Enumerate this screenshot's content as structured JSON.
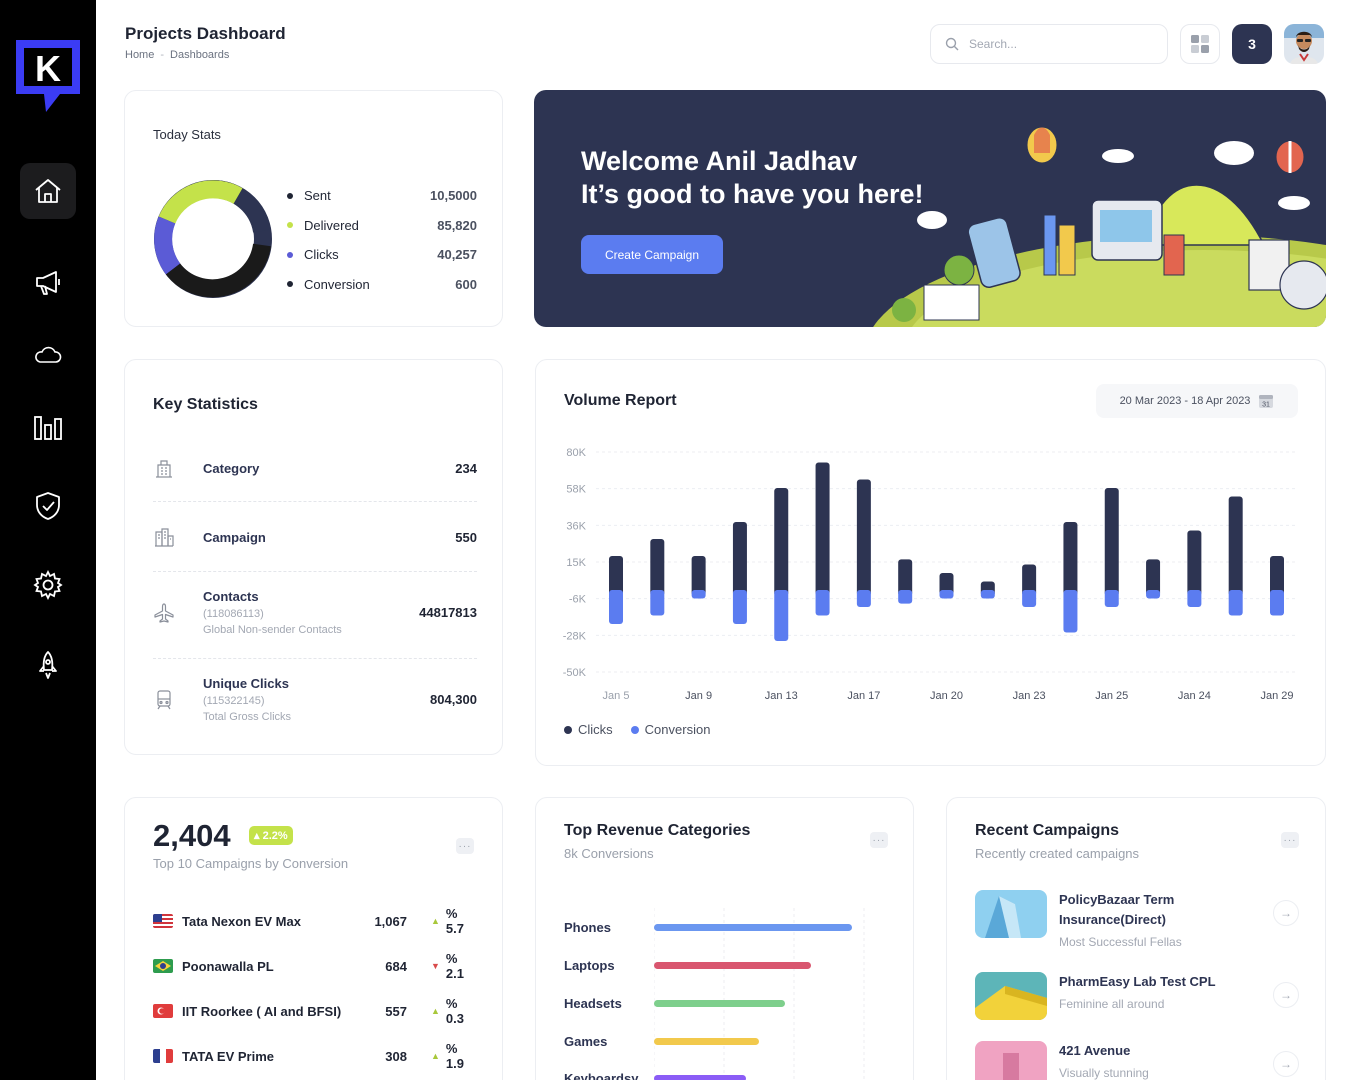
{
  "app": {
    "logo_letter": "K",
    "accent": "#3b3cf4"
  },
  "sidebar": {
    "items": [
      {
        "name": "home",
        "icon": "home-icon"
      },
      {
        "name": "campaigns",
        "icon": "megaphone-icon"
      },
      {
        "name": "cloud",
        "icon": "cloud-icon"
      },
      {
        "name": "reports",
        "icon": "bar-chart-icon"
      },
      {
        "name": "security",
        "icon": "shield-check-icon"
      },
      {
        "name": "settings",
        "icon": "gear-icon"
      },
      {
        "name": "launch",
        "icon": "rocket-icon"
      }
    ]
  },
  "header": {
    "title": "Projects Dashboard",
    "breadcrumb": [
      "Home",
      "Dashboards"
    ],
    "search_placeholder": "Search...",
    "notification_count": "3"
  },
  "today_stats": {
    "title": "Today Stats",
    "items": [
      {
        "label": "Sent",
        "value": "10,5000",
        "color": "#1f2433"
      },
      {
        "label": "Delivered",
        "value": "85,820",
        "color": "#c4e24a"
      },
      {
        "label": "Clicks",
        "value": "40,257",
        "color": "#5b5bd6"
      },
      {
        "label": "Conversion",
        "value": "600",
        "color": "#1f2433"
      }
    ]
  },
  "welcome": {
    "line1": "Welcome Anil Jadhav",
    "line2": "It’s good to have you here!",
    "button": "Create Campaign"
  },
  "key_statistics": {
    "title": "Key Statistics",
    "rows": [
      {
        "name": "Category",
        "value": "234",
        "icon": "building-icon"
      },
      {
        "name": "Campaign",
        "value": "550",
        "icon": "buildings-icon"
      },
      {
        "name": "Contacts",
        "id": "(118086113)",
        "sub": "Global Non-sender Contacts",
        "value": "44817813",
        "icon": "airplane-icon"
      },
      {
        "name": "Unique Clicks",
        "id": "(115322145)",
        "sub": "Total Gross Clicks",
        "value": "804,300",
        "icon": "train-icon"
      }
    ]
  },
  "volume_report": {
    "title": "Volume Report",
    "date_range": "20 Mar 2023 - 18 Apr 2023",
    "legend": [
      "Clicks",
      "Conversion"
    ]
  },
  "chart_data": {
    "type": "bar",
    "y_tick_labels": [
      "80K",
      "58K",
      "36K",
      "15K",
      "-6K",
      "-28K",
      "-50K"
    ],
    "x_tick_labels": [
      "Jan 5",
      "Jan 9",
      "Jan 13",
      "Jan 17",
      "Jan 20",
      "Jan 23",
      "Jan 25",
      "Jan 24",
      "Jan 29"
    ],
    "series": [
      {
        "name": "Clicks",
        "color": "#2d3452",
        "values": [
          20,
          30,
          20,
          40,
          60,
          75,
          65,
          18,
          10,
          5,
          15,
          40,
          60,
          18,
          35,
          55,
          20
        ]
      },
      {
        "name": "Conversion",
        "color": "#5b7cf0",
        "values": [
          -20,
          -15,
          -5,
          -20,
          -30,
          -15,
          -10,
          -8,
          -5,
          -5,
          -10,
          -25,
          -10,
          -5,
          -10,
          -15,
          -15
        ]
      }
    ]
  },
  "top_campaigns": {
    "total": "2,404",
    "change": "2.2%",
    "subtitle": "Top 10 Campaigns by Conversion",
    "rows": [
      {
        "name": "Tata Nexon EV Max",
        "count": "1,067",
        "change": "% 5.7",
        "dir": "up",
        "flag": "us"
      },
      {
        "name": "Poonawalla PL",
        "count": "684",
        "change": "% 2.1",
        "dir": "down",
        "flag": "br"
      },
      {
        "name": "IIT Roorkee ( AI and BFSI)",
        "count": "557",
        "change": "% 0.3",
        "dir": "up",
        "flag": "tr"
      },
      {
        "name": "TATA EV Prime",
        "count": "308",
        "change": "% 1.9",
        "dir": "up",
        "flag": "fr"
      }
    ]
  },
  "top_revenue": {
    "title": "Top Revenue Categories",
    "subtitle": "8k Conversions",
    "rows": [
      {
        "label": "Phones",
        "value": 0.92,
        "color": "#6b97f0"
      },
      {
        "label": "Laptops",
        "value": 0.73,
        "color": "#d9566f"
      },
      {
        "label": "Headsets",
        "value": 0.61,
        "color": "#7ecf8c"
      },
      {
        "label": "Games",
        "value": 0.49,
        "color": "#f2c94c"
      },
      {
        "label": "Keyboardsy",
        "value": 0.43,
        "color": "#8b5cf6"
      }
    ]
  },
  "recent_campaigns": {
    "title": "Recent Campaigns",
    "subtitle": "Recently created campaigns",
    "items": [
      {
        "name": "PolicyBazaar Term Insurance(Direct)",
        "sub": "Most Successful Fellas"
      },
      {
        "name": "PharmEasy Lab Test CPL",
        "sub": "Feminine all around"
      },
      {
        "name": "421 Avenue",
        "sub": "Visually stunning"
      }
    ]
  }
}
